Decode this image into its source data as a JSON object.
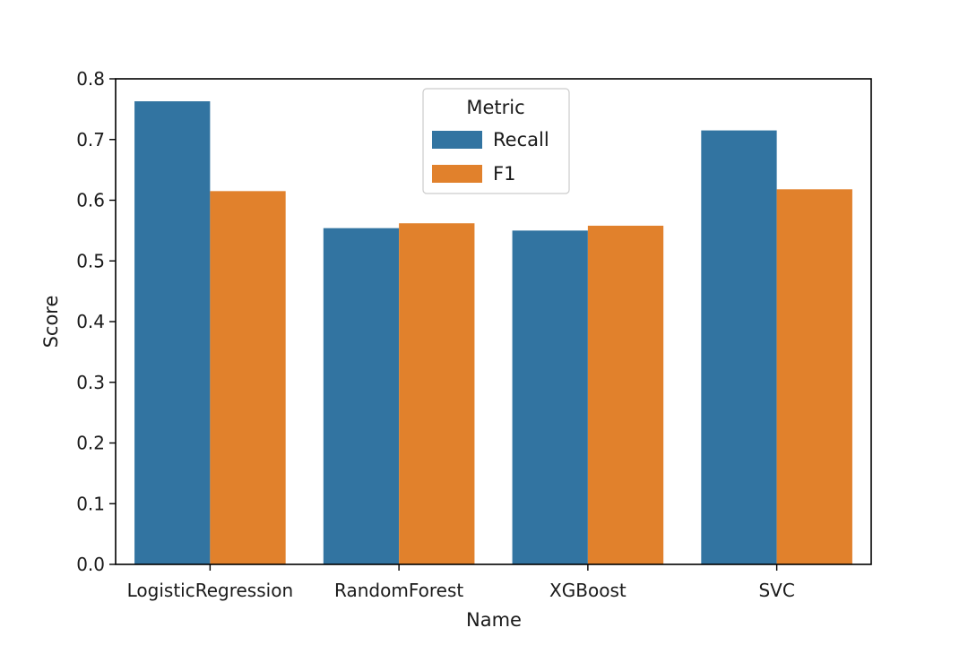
{
  "chart_data": {
    "type": "bar",
    "xlabel": "Name",
    "ylabel": "Score",
    "categories": [
      "LogisticRegression",
      "RandomForest",
      "XGBoost",
      "SVC"
    ],
    "series": [
      {
        "name": "Recall",
        "values": [
          0.763,
          0.554,
          0.55,
          0.715
        ],
        "color": "#3274a1"
      },
      {
        "name": "F1",
        "values": [
          0.615,
          0.562,
          0.558,
          0.618
        ],
        "color": "#e1812c"
      }
    ],
    "ylim": [
      0,
      0.8
    ],
    "yticks": [
      "0.0",
      "0.1",
      "0.2",
      "0.3",
      "0.4",
      "0.5",
      "0.6",
      "0.7",
      "0.8"
    ],
    "grid": false,
    "legend": {
      "title": "Metric",
      "placement": "upper center"
    }
  }
}
